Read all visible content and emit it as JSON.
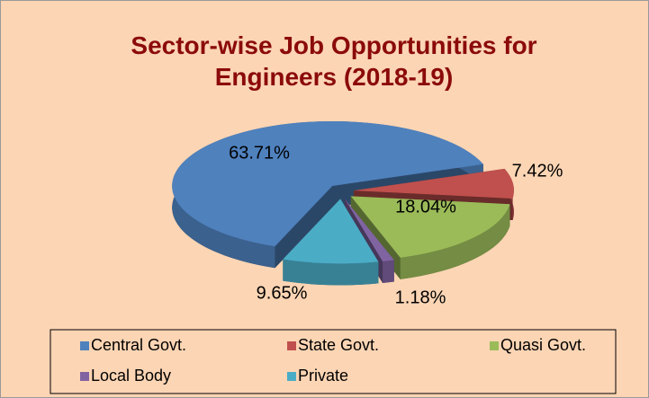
{
  "chart_data": {
    "type": "pie",
    "title": "Sector-wise Job Opportunities for Engineers (2018-19)",
    "categories": [
      "Central Govt.",
      "State Govt.",
      "Quasi Govt.",
      "Local Body",
      "Private"
    ],
    "values": [
      63.71,
      7.42,
      18.04,
      1.18,
      9.65
    ],
    "value_labels": [
      "63.71%",
      "7.42%",
      "18.04%",
      "1.18%",
      "9.65%"
    ],
    "colors": [
      "#4f81bd",
      "#c0504d",
      "#9bbb59",
      "#8064a2",
      "#4bacc6"
    ],
    "legend": "bottom"
  }
}
